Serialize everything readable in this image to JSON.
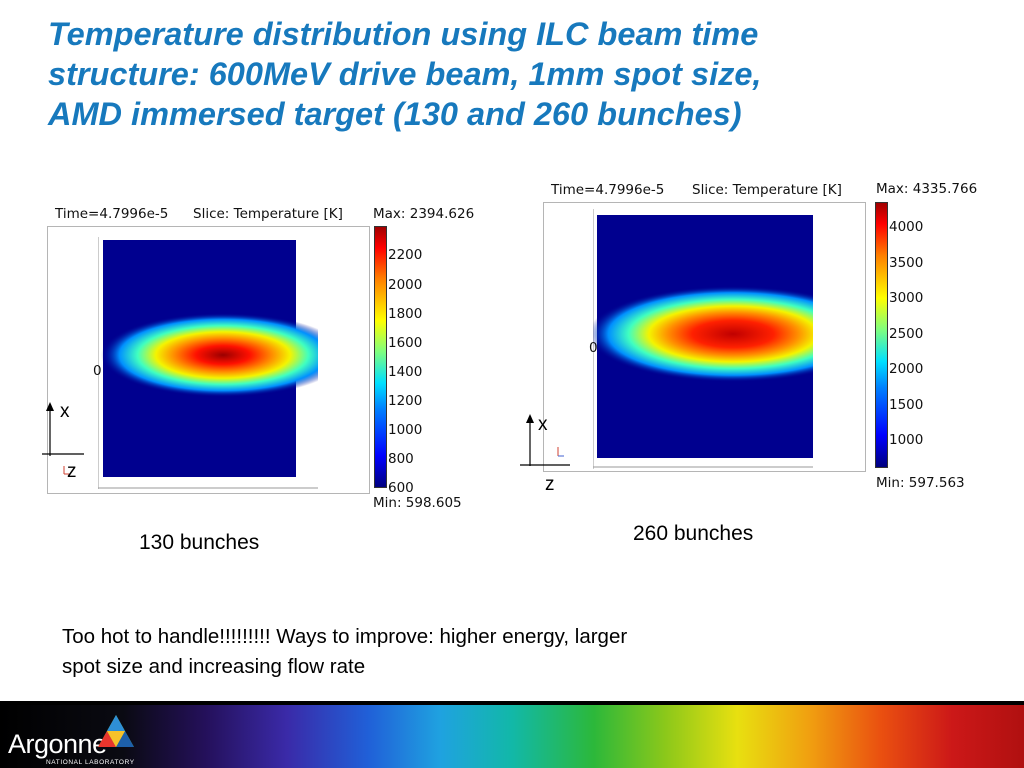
{
  "title": {
    "line1": "Temperature distribution using ILC beam time",
    "line2": "structure: 600MeV drive beam, 1mm spot size,",
    "line3": "AMD immersed target (130 and 260 bunches)"
  },
  "panels": [
    {
      "time_label": "Time=4.7996e-5",
      "slice_label": "Slice: Temperature [K]",
      "max_label": "Max: 2394.626",
      "min_label": "Min: 598.605",
      "colorbar_ticks": [
        "2200",
        "2000",
        "1800",
        "1600",
        "1400",
        "1200",
        "1000",
        "800",
        "600"
      ],
      "origin_tick": "0",
      "x_axis": "x",
      "z_axis": "z",
      "caption": "130 bunches"
    },
    {
      "time_label": "Time=4.7996e-5",
      "slice_label": "Slice: Temperature [K]",
      "max_label": "Max: 4335.766",
      "min_label": "Min: 597.563",
      "colorbar_ticks": [
        "4000",
        "3500",
        "3000",
        "2500",
        "2000",
        "1500",
        "1000"
      ],
      "origin_tick": "0",
      "x_axis": "x",
      "z_axis": "z",
      "caption": "260 bunches"
    }
  ],
  "note": {
    "line1": "Too hot to handle!!!!!!!!!  Ways to improve: higher energy, larger",
    "line2": "spot size and increasing flow rate"
  },
  "footer": {
    "logo_name": "Argonne",
    "logo_sub": "NATIONAL LABORATORY"
  },
  "colors": {
    "title": "#1779bd",
    "plot_background": "#00008f"
  },
  "icons": [
    "argonne-logo-triangle-icon"
  ]
}
